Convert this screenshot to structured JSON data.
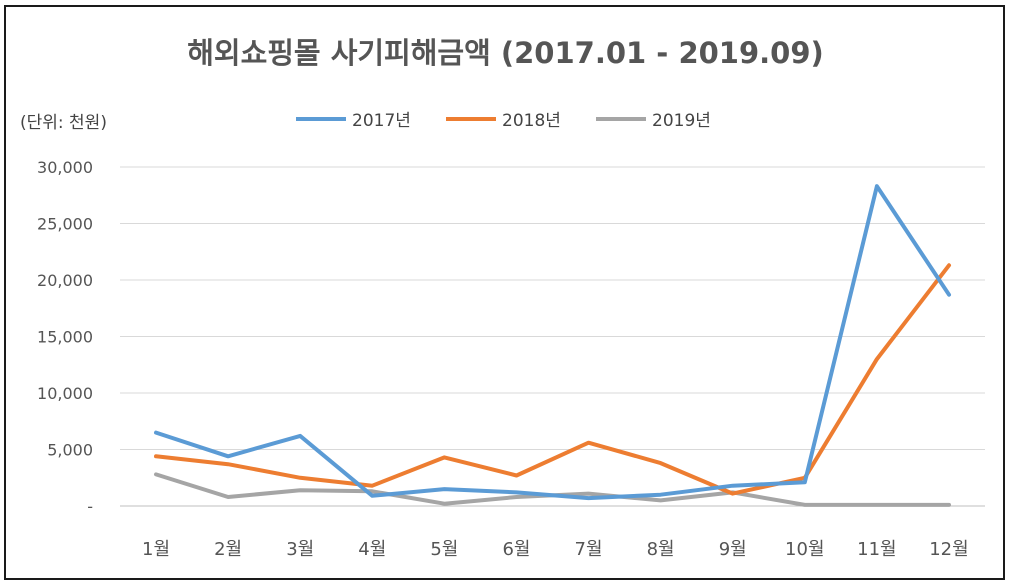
{
  "chart_data": {
    "type": "line",
    "title": "해외쇼핑몰 사기피해금액 (2017.01 - 2019.09)",
    "unit_label": "(단위: 천원)",
    "categories": [
      "1월",
      "2월",
      "3월",
      "4월",
      "5월",
      "6월",
      "7월",
      "8월",
      "9월",
      "10월",
      "11월",
      "12월"
    ],
    "y_tick_labels": [
      "-",
      "5,000",
      "10,000",
      "15,000",
      "20,000",
      "25,000",
      "30,000"
    ],
    "ylim": [
      0,
      30000
    ],
    "grid": true,
    "legend_position": "top",
    "series": [
      {
        "name": "2017년",
        "color": "#5b9bd5",
        "values": [
          6500,
          4400,
          6200,
          900,
          1500,
          1200,
          700,
          1000,
          1800,
          2100,
          28300,
          18700
        ]
      },
      {
        "name": "2018년",
        "color": "#ed7d31",
        "values": [
          4400,
          3700,
          2500,
          1800,
          4300,
          2700,
          5600,
          3800,
          1100,
          2500,
          13000,
          21300
        ]
      },
      {
        "name": "2019년",
        "color": "#a5a5a5",
        "values": [
          2800,
          800,
          1400,
          1300,
          200,
          800,
          1100,
          500,
          1200,
          100,
          100,
          100
        ]
      }
    ]
  }
}
